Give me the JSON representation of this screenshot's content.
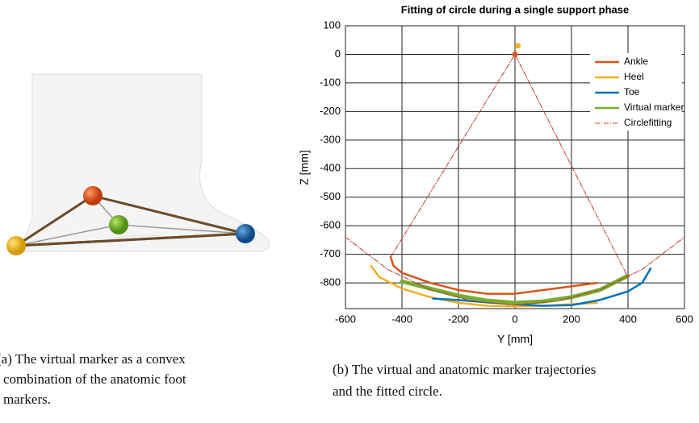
{
  "figure": {
    "caption_a": [
      "(a) The virtual marker as a convex",
      "combination of the anatomic foot",
      "markers."
    ],
    "caption_b": [
      "(b) The virtual and anatomic marker trajectories",
      "and the fitted circle."
    ]
  },
  "chart_data": {
    "type": "line",
    "title": "Fitting of circle during a single support phase",
    "x_label": "Y [mm]",
    "y_label": "Z [mm]",
    "xlim": [
      -600,
      600
    ],
    "ylim": [
      -890,
      100
    ],
    "xticks": [
      -600,
      -400,
      -200,
      0,
      200,
      400,
      600
    ],
    "yticks": [
      100,
      0,
      -100,
      -200,
      -300,
      -400,
      -500,
      -600,
      -700,
      -800
    ],
    "grid": true,
    "legend": "upper right",
    "series": [
      {
        "name": "Ankle",
        "color": "#d95319",
        "x": [
          -440,
          -430,
          -400,
          -300,
          -200,
          -100,
          0,
          100,
          200,
          290
        ],
        "values": [
          -710,
          -740,
          -765,
          -800,
          -825,
          -838,
          -838,
          -825,
          -812,
          -800
        ]
      },
      {
        "name": "Heel",
        "color": "#edb120",
        "x": [
          -510,
          -480,
          -400,
          -300,
          -200,
          -100,
          0,
          100,
          200,
          290
        ],
        "values": [
          -740,
          -780,
          -820,
          -850,
          -870,
          -880,
          -882,
          -880,
          -875,
          -870
        ]
      },
      {
        "name": "Toe",
        "color": "#0072bd",
        "x": [
          -290,
          -200,
          -100,
          0,
          100,
          200,
          300,
          400,
          450,
          480
        ],
        "values": [
          -855,
          -860,
          -868,
          -875,
          -880,
          -878,
          -860,
          -830,
          -800,
          -750
        ]
      },
      {
        "name": "Virtual marker",
        "color": "#77ac30",
        "x": [
          -400,
          -300,
          -200,
          -100,
          0,
          100,
          200,
          300,
          400
        ],
        "values": [
          -795,
          -820,
          -845,
          -862,
          -870,
          -865,
          -850,
          -825,
          -775
        ]
      },
      {
        "name": "Circlefitting",
        "color": "#c0392b",
        "dashed": true,
        "x": [
          -440,
          0,
          400,
          0,
          -600,
          -450,
          -300,
          -150,
          0,
          150,
          300,
          450,
          600
        ],
        "values": [
          -710,
          0,
          -780,
          null,
          -640,
          -753,
          -824,
          -864,
          -877,
          -864,
          -824,
          -753,
          -640
        ]
      }
    ],
    "centers": [
      {
        "x": 0,
        "y": 0,
        "color": "#d95319"
      },
      {
        "x": 10,
        "y": 30,
        "color": "#edb120"
      }
    ]
  }
}
